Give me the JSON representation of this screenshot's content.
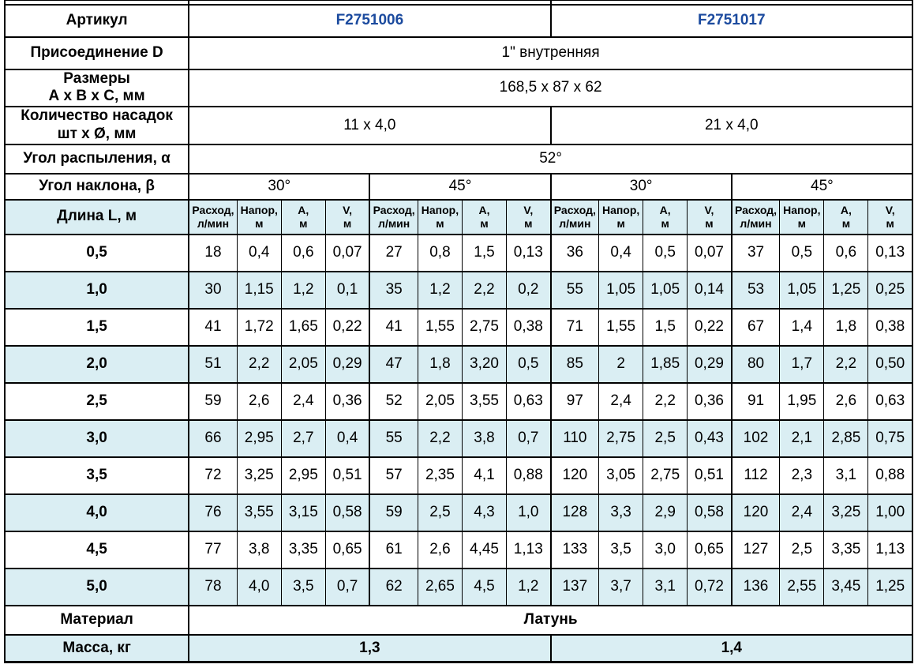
{
  "colors": {
    "article_text": "#1b4a9e",
    "alt_row_bg": "#daeef3",
    "border": "#000000",
    "background": "#ffffff"
  },
  "spec": {
    "articul": {
      "label": "Артикул",
      "values": [
        "F2751006",
        "F2751017"
      ]
    },
    "connection": {
      "label": "Присоединение D",
      "value": "1\" внутренняя"
    },
    "dimensions": {
      "label": [
        "Размеры",
        "А х В х С, мм"
      ],
      "value": "168,5 х 87 х 62"
    },
    "nozzles": {
      "label": [
        "Количество насадок",
        "шт х Ø, мм"
      ],
      "values": [
        "11 х 4,0",
        "21 х 4,0"
      ]
    },
    "spray_angle": {
      "label": "Угол распыления, α",
      "value": "52°"
    },
    "tilt_angle": {
      "label": "Угол наклона, β",
      "values": [
        "30°",
        "45°",
        "30°",
        "45°"
      ]
    },
    "material": {
      "label": "Материал",
      "value": "Латунь"
    },
    "mass": {
      "label": "Масса, кг",
      "values": [
        "1,3",
        "1,4"
      ]
    }
  },
  "measurements": {
    "length_label": "Длина L, м",
    "column_headers": [
      [
        "Расход,",
        "л/мин"
      ],
      [
        "Напор,",
        "м"
      ],
      [
        "А,",
        "м"
      ],
      [
        "V,",
        "м"
      ]
    ],
    "header_groups": 4,
    "rows": [
      {
        "length": "0,5",
        "values": [
          "18",
          "0,4",
          "0,6",
          "0,07",
          "27",
          "0,8",
          "1,5",
          "0,13",
          "36",
          "0,4",
          "0,5",
          "0,07",
          "37",
          "0,5",
          "0,6",
          "0,13"
        ]
      },
      {
        "length": "1,0",
        "values": [
          "30",
          "1,15",
          "1,2",
          "0,1",
          "35",
          "1,2",
          "2,2",
          "0,2",
          "55",
          "1,05",
          "1,05",
          "0,14",
          "53",
          "1,05",
          "1,25",
          "0,25"
        ]
      },
      {
        "length": "1,5",
        "values": [
          "41",
          "1,72",
          "1,65",
          "0,22",
          "41",
          "1,55",
          "2,75",
          "0,38",
          "71",
          "1,55",
          "1,5",
          "0,22",
          "67",
          "1,4",
          "1,8",
          "0,38"
        ]
      },
      {
        "length": "2,0",
        "values": [
          "51",
          "2,2",
          "2,05",
          "0,29",
          "47",
          "1,8",
          "3,20",
          "0,5",
          "85",
          "2",
          "1,85",
          "0,29",
          "80",
          "1,7",
          "2,2",
          "0,50"
        ]
      },
      {
        "length": "2,5",
        "values": [
          "59",
          "2,6",
          "2,4",
          "0,36",
          "52",
          "2,05",
          "3,55",
          "0,63",
          "97",
          "2,4",
          "2,2",
          "0,36",
          "91",
          "1,95",
          "2,6",
          "0,63"
        ]
      },
      {
        "length": "3,0",
        "values": [
          "66",
          "2,95",
          "2,7",
          "0,4",
          "55",
          "2,2",
          "3,8",
          "0,7",
          "110",
          "2,75",
          "2,5",
          "0,43",
          "102",
          "2,1",
          "2,85",
          "0,75"
        ]
      },
      {
        "length": "3,5",
        "values": [
          "72",
          "3,25",
          "2,95",
          "0,51",
          "57",
          "2,35",
          "4,1",
          "0,88",
          "120",
          "3,05",
          "2,75",
          "0,51",
          "112",
          "2,3",
          "3,1",
          "0,88"
        ]
      },
      {
        "length": "4,0",
        "values": [
          "76",
          "3,55",
          "3,15",
          "0,58",
          "59",
          "2,5",
          "4,3",
          "1,0",
          "128",
          "3,3",
          "2,9",
          "0,58",
          "120",
          "2,4",
          "3,25",
          "1,00"
        ]
      },
      {
        "length": "4,5",
        "values": [
          "77",
          "3,8",
          "3,35",
          "0,65",
          "61",
          "2,6",
          "4,45",
          "1,13",
          "133",
          "3,5",
          "3,0",
          "0,65",
          "127",
          "2,5",
          "3,35",
          "1,13"
        ]
      },
      {
        "length": "5,0",
        "values": [
          "78",
          "4,0",
          "3,5",
          "0,7",
          "62",
          "2,65",
          "4,5",
          "1,2",
          "137",
          "3,7",
          "3,1",
          "0,72",
          "136",
          "2,55",
          "3,45",
          "1,25"
        ]
      }
    ]
  }
}
